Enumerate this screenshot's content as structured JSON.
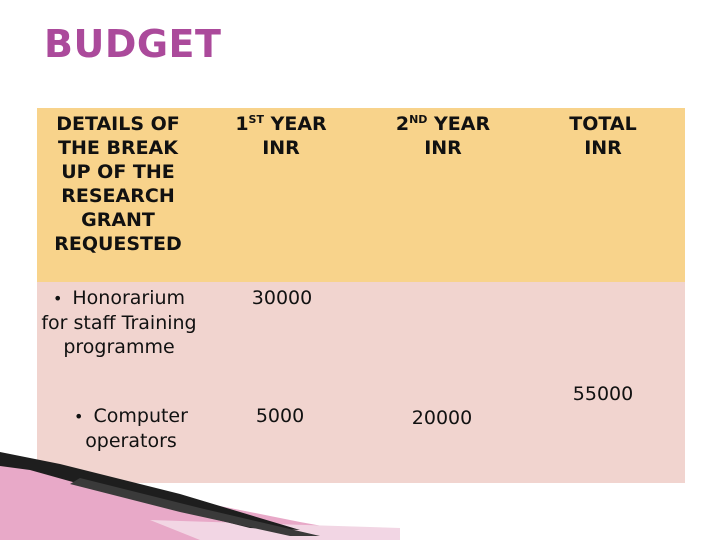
{
  "slide": {
    "title": "BUDGET",
    "title_color": "#ab4a9b"
  },
  "table": {
    "header_color": "#f8d38b",
    "body_color": "#f1d4cf",
    "headers": {
      "details": "DETAILS OF THE BREAK UP OF THE RESEARCH GRANT REQUESTED",
      "year1_num": "1",
      "year1_sup": "ST",
      "year1_rest": " YEAR INR",
      "year2_num": "2",
      "year2_sup": "ND",
      "year2_rest": " YEAR INR",
      "total": "TOTAL INR"
    },
    "rows": [
      {
        "bullet": "•",
        "item": "Honorarium for staff Training programme",
        "year1": "30000",
        "year2": ""
      },
      {
        "bullet": "•",
        "item": "Computer operators",
        "year1": "5000",
        "year2": "20000"
      }
    ],
    "total_value": "55000"
  }
}
